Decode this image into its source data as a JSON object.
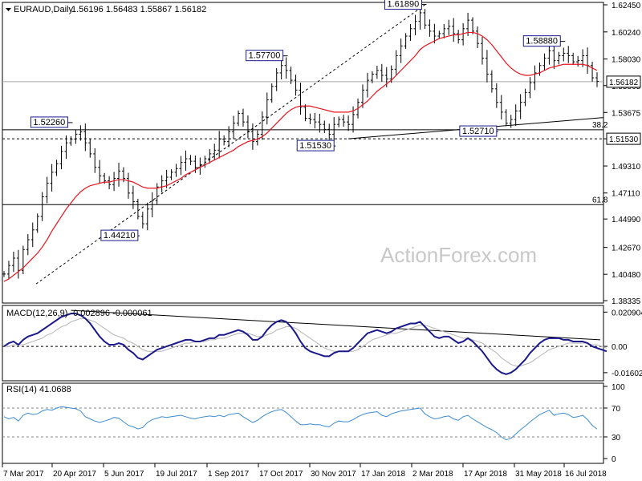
{
  "header": {
    "symbol": "EURAUD,Daily",
    "ohlc": "1.56196 1.56483 1.55867 1.56182"
  },
  "watermark": "ActionForex.com",
  "chart_data": [
    {
      "type": "line",
      "name": "price",
      "title": "EURAUD,Daily",
      "x": [
        "7 Mar 2017",
        "20 Apr 2017",
        "5 Jun 2017",
        "19 Jul 2017",
        "1 Sep 2017",
        "17 Oct 2017",
        "30 Nov 2017",
        "17 Jan 2018",
        "2 Mar 2018",
        "17 Apr 2018",
        "31 May 2018",
        "16 Jul 2018"
      ],
      "y_ticks": [
        "1.62450",
        "1.60240",
        "1.58030",
        "1.55865",
        "1.53675",
        "1.51530",
        "1.49310",
        "1.47110",
        "1.44990",
        "1.42670",
        "1.40480",
        "1.38335"
      ],
      "ylim": [
        1.38335,
        1.6245
      ],
      "current_price": "1.56182",
      "annotations": [
        {
          "label": "1.61890",
          "value": 1.6189
        },
        {
          "label": "1.58880",
          "value": 1.5888
        },
        {
          "label": "1.57700",
          "value": 1.577
        },
        {
          "label": "1.52260",
          "value": 1.5226
        },
        {
          "label": "1.52710",
          "value": 1.5271
        },
        {
          "label": "1.51530",
          "value": 1.5153
        },
        {
          "label": "1.44210",
          "value": 1.4421
        }
      ],
      "levels": [
        {
          "label": "38.2",
          "value": 1.5226
        },
        {
          "label": "1.51530",
          "value": 1.5153
        },
        {
          "label": "61.8",
          "value": 1.4616
        }
      ],
      "closes": [
        1.405,
        1.412,
        1.418,
        1.408,
        1.425,
        1.433,
        1.441,
        1.452,
        1.468,
        1.479,
        1.488,
        1.495,
        1.505,
        1.512,
        1.515,
        1.519,
        1.521,
        1.512,
        1.503,
        1.492,
        1.485,
        1.481,
        1.478,
        1.483,
        1.489,
        1.483,
        1.471,
        1.464,
        1.452,
        1.446,
        1.458,
        1.465,
        1.476,
        1.481,
        1.484,
        1.488,
        1.491,
        1.496,
        1.499,
        1.497,
        1.492,
        1.494,
        1.499,
        1.503,
        1.506,
        1.515,
        1.513,
        1.521,
        1.528,
        1.536,
        1.529,
        1.521,
        1.513,
        1.519,
        1.533,
        1.547,
        1.558,
        1.569,
        1.575,
        1.571,
        1.563,
        1.555,
        1.541,
        1.532,
        1.531,
        1.529,
        1.527,
        1.523,
        1.519,
        1.527,
        1.531,
        1.529,
        1.527,
        1.535,
        1.545,
        1.555,
        1.563,
        1.568,
        1.571,
        1.567,
        1.564,
        1.572,
        1.583,
        1.591,
        1.599,
        1.605,
        1.611,
        1.618,
        1.608,
        1.603,
        1.599,
        1.601,
        1.605,
        1.607,
        1.601,
        1.596,
        1.605,
        1.612,
        1.603,
        1.593,
        1.581,
        1.568,
        1.556,
        1.545,
        1.537,
        1.528,
        1.531,
        1.538,
        1.545,
        1.553,
        1.561,
        1.569,
        1.575,
        1.581,
        1.587,
        1.579,
        1.583,
        1.585,
        1.583,
        1.578,
        1.579,
        1.583,
        1.575,
        1.565,
        1.562
      ],
      "sma": [
        1.399,
        1.401,
        1.404,
        1.407,
        1.41,
        1.414,
        1.418,
        1.422,
        1.427,
        1.433,
        1.44,
        1.446,
        1.452,
        1.458,
        1.463,
        1.468,
        1.472,
        1.475,
        1.477,
        1.478,
        1.479,
        1.48,
        1.48,
        1.481,
        1.482,
        1.482,
        1.481,
        1.48,
        1.478,
        1.476,
        1.475,
        1.475,
        1.475,
        1.476,
        1.477,
        1.479,
        1.481,
        1.483,
        1.486,
        1.488,
        1.49,
        1.492,
        1.494,
        1.496,
        1.498,
        1.5,
        1.502,
        1.504,
        1.506,
        1.509,
        1.511,
        1.513,
        1.514,
        1.515,
        1.517,
        1.52,
        1.524,
        1.528,
        1.532,
        1.536,
        1.539,
        1.541,
        1.542,
        1.542,
        1.542,
        1.541,
        1.54,
        1.539,
        1.538,
        1.537,
        1.537,
        1.537,
        1.537,
        1.538,
        1.54,
        1.543,
        1.546,
        1.55,
        1.554,
        1.557,
        1.56,
        1.563,
        1.567,
        1.571,
        1.575,
        1.579,
        1.583,
        1.588,
        1.591,
        1.593,
        1.595,
        1.597,
        1.598,
        1.599,
        1.6,
        1.6,
        1.601,
        1.602,
        1.602,
        1.601,
        1.599,
        1.596,
        1.592,
        1.587,
        1.582,
        1.577,
        1.573,
        1.57,
        1.568,
        1.567,
        1.567,
        1.568,
        1.569,
        1.571,
        1.573,
        1.574,
        1.575,
        1.576,
        1.576,
        1.576,
        1.576,
        1.576,
        1.575,
        1.573,
        1.571
      ]
    },
    {
      "type": "line",
      "name": "macd",
      "title": "MACD(12,26,9) -0.002896 -0.000061",
      "y_ticks": [
        "0.020904",
        "0.00",
        "-0.016023"
      ],
      "ylim": [
        -0.02,
        0.024
      ],
      "macd": [
        0.0,
        0.002,
        0.003,
        0.001,
        0.004,
        0.006,
        0.007,
        0.008,
        0.01,
        0.012,
        0.014,
        0.016,
        0.018,
        0.019,
        0.02,
        0.02,
        0.019,
        0.017,
        0.014,
        0.01,
        0.006,
        0.003,
        0.001,
        0.001,
        0.002,
        0.001,
        -0.002,
        -0.004,
        -0.007,
        -0.008,
        -0.006,
        -0.004,
        -0.002,
        -0.001,
        0.0,
        0.001,
        0.002,
        0.003,
        0.004,
        0.004,
        0.003,
        0.003,
        0.004,
        0.005,
        0.005,
        0.007,
        0.007,
        0.008,
        0.009,
        0.01,
        0.009,
        0.007,
        0.004,
        0.004,
        0.006,
        0.01,
        0.013,
        0.015,
        0.016,
        0.015,
        0.012,
        0.008,
        0.003,
        -0.001,
        -0.003,
        -0.004,
        -0.005,
        -0.006,
        -0.006,
        -0.004,
        -0.003,
        -0.003,
        -0.003,
        -0.001,
        0.002,
        0.005,
        0.008,
        0.009,
        0.01,
        0.009,
        0.008,
        0.009,
        0.011,
        0.012,
        0.013,
        0.014,
        0.014,
        0.015,
        0.012,
        0.009,
        0.006,
        0.005,
        0.006,
        0.006,
        0.004,
        0.002,
        0.003,
        0.005,
        0.003,
        0.0,
        -0.003,
        -0.007,
        -0.011,
        -0.014,
        -0.016,
        -0.017,
        -0.016,
        -0.014,
        -0.011,
        -0.008,
        -0.004,
        -0.001,
        0.002,
        0.004,
        0.005,
        0.005,
        0.005,
        0.004,
        0.004,
        0.003,
        0.003,
        0.003,
        0.002,
        0.0,
        -0.001,
        -0.002,
        -0.003
      ],
      "signal": [
        0.0,
        0.0,
        0.001,
        0.001,
        0.001,
        0.002,
        0.003,
        0.004,
        0.005,
        0.007,
        0.008,
        0.01,
        0.012,
        0.013,
        0.015,
        0.016,
        0.017,
        0.017,
        0.016,
        0.015,
        0.013,
        0.011,
        0.009,
        0.007,
        0.006,
        0.005,
        0.003,
        0.002,
        0.0,
        -0.002,
        -0.003,
        -0.003,
        -0.003,
        -0.003,
        -0.002,
        -0.001,
        0.0,
        0.001,
        0.002,
        0.002,
        0.003,
        0.003,
        0.003,
        0.004,
        0.004,
        0.005,
        0.005,
        0.006,
        0.007,
        0.008,
        0.008,
        0.008,
        0.007,
        0.006,
        0.006,
        0.007,
        0.008,
        0.01,
        0.011,
        0.012,
        0.012,
        0.011,
        0.009,
        0.007,
        0.005,
        0.003,
        0.001,
        -0.001,
        -0.002,
        -0.003,
        -0.003,
        -0.003,
        -0.003,
        -0.003,
        -0.002,
        0.0,
        0.002,
        0.004,
        0.005,
        0.006,
        0.007,
        0.008,
        0.008,
        0.009,
        0.01,
        0.011,
        0.012,
        0.013,
        0.013,
        0.012,
        0.011,
        0.01,
        0.009,
        0.008,
        0.007,
        0.006,
        0.005,
        0.005,
        0.004,
        0.003,
        0.002,
        0.0,
        -0.002,
        -0.004,
        -0.007,
        -0.009,
        -0.011,
        -0.012,
        -0.012,
        -0.011,
        -0.01,
        -0.008,
        -0.006,
        -0.004,
        -0.002,
        -0.001,
        0.0,
        0.001,
        0.002,
        0.002,
        0.002,
        0.002,
        0.002,
        0.001,
        0.001,
        0.0,
        -0.001
      ]
    },
    {
      "type": "line",
      "name": "rsi",
      "title": "RSI(14) 41.0688",
      "y_ticks": [
        "100",
        "70",
        "30",
        "0"
      ],
      "ylim": [
        0,
        100
      ],
      "values": [
        58,
        55,
        57,
        52,
        60,
        63,
        61,
        62,
        66,
        68,
        67,
        70,
        72,
        71,
        70,
        69,
        66,
        58,
        55,
        52,
        50,
        52,
        54,
        57,
        56,
        51,
        46,
        44,
        41,
        43,
        50,
        54,
        56,
        58,
        57,
        58,
        59,
        60,
        58,
        56,
        55,
        57,
        58,
        59,
        58,
        60,
        58,
        61,
        62,
        63,
        58,
        54,
        50,
        53,
        58,
        62,
        65,
        67,
        68,
        64,
        58,
        52,
        47,
        47,
        48,
        47,
        47,
        45,
        44,
        49,
        52,
        51,
        51,
        54,
        58,
        61,
        63,
        64,
        65,
        60,
        58,
        62,
        64,
        66,
        67,
        68,
        69,
        70,
        62,
        58,
        55,
        56,
        58,
        59,
        55,
        53,
        58,
        60,
        55,
        51,
        47,
        43,
        40,
        36,
        30,
        26,
        28,
        34,
        40,
        45,
        51,
        56,
        61,
        64,
        67,
        60,
        62,
        63,
        61,
        57,
        58,
        60,
        54,
        46,
        41
      ]
    }
  ]
}
